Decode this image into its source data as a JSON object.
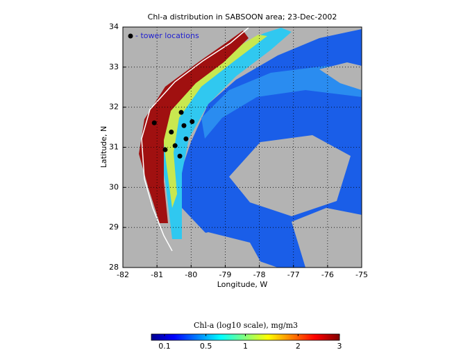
{
  "chart_data": {
    "type": "scatter",
    "title": "Chl-a distribution in SABSOON area; 23-Dec-2002",
    "xlabel": "Longitude, W",
    "ylabel": "Latitude, N",
    "xlim": [
      -82,
      -75
    ],
    "ylim": [
      28,
      34
    ],
    "xticks": [
      -82,
      -81,
      -80,
      -79,
      -78,
      -77,
      -76,
      -75
    ],
    "yticks": [
      28,
      29,
      30,
      31,
      32,
      33,
      34
    ],
    "grid": true,
    "series": [
      {
        "name": "- tower locations",
        "color": "#000000",
        "x": [
          -81.08,
          -80.29,
          -79.97,
          -80.21,
          -80.58,
          -80.15,
          -80.47,
          -80.76,
          -80.33
        ],
        "y": [
          31.61,
          31.87,
          31.64,
          31.54,
          31.38,
          31.21,
          31.04,
          30.94,
          30.78
        ]
      }
    ],
    "legend": "upper left",
    "colorbar": {
      "label": "Chl-a (log10 scale), mg/m3",
      "ticks": [
        0.1,
        0.5,
        1,
        2,
        3
      ]
    }
  }
}
